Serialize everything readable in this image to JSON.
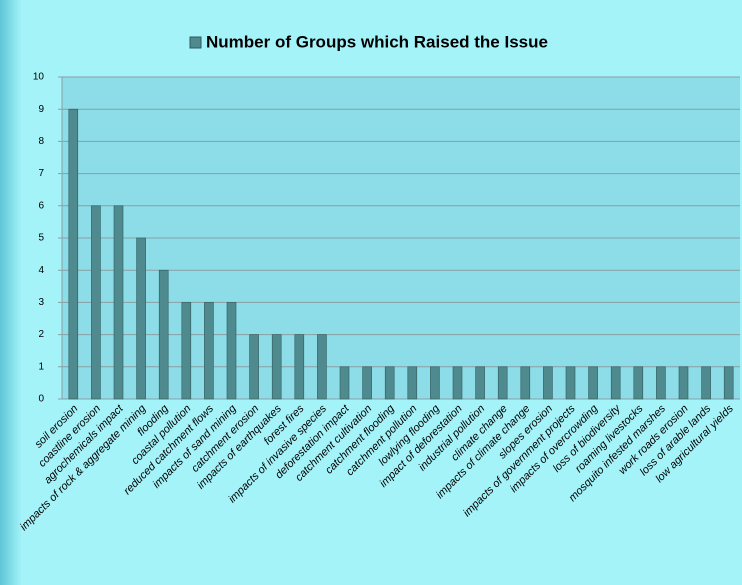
{
  "chart_data": {
    "type": "bar",
    "categories": [
      "soil erosion",
      "coastline erosion",
      "agrochemicals impact",
      "impacts of rock & aggregate mining",
      "flooding",
      "coastal pollution",
      "reduced catchment flows",
      "impacts of sand mining",
      "catchment erosion",
      "impacts of earthquakes",
      "forest fires",
      "impacts of invasive species",
      "deforestation impact",
      "catchment cultivation",
      "catchment flooding",
      "catchment pollution",
      "lowlying flooding",
      "impact of deforestation",
      "industrial pollution",
      "climate change",
      "impacts of climate change",
      "slopes erosion",
      "impacts of government projects",
      "impacts of overcrowding",
      "loss of biodiversity",
      "roaming livestocks",
      "mosquito infested marshes",
      "work roads erosion",
      "loss of arable lands",
      "low agricultural  yields"
    ],
    "series": [
      {
        "name": "Number of Groups which Raised the Issue",
        "color": "#4f8a8f",
        "values": [
          9,
          6,
          6,
          5,
          4,
          3,
          3,
          3,
          2,
          2,
          2,
          2,
          1,
          1,
          1,
          1,
          1,
          1,
          1,
          1,
          1,
          1,
          1,
          1,
          1,
          1,
          1,
          1,
          1,
          1
        ]
      }
    ],
    "ylim": [
      0,
      10
    ],
    "yticks": [
      0,
      1,
      2,
      3,
      4,
      5,
      6,
      7,
      8,
      9,
      10
    ],
    "grid": true,
    "legend": "top"
  }
}
